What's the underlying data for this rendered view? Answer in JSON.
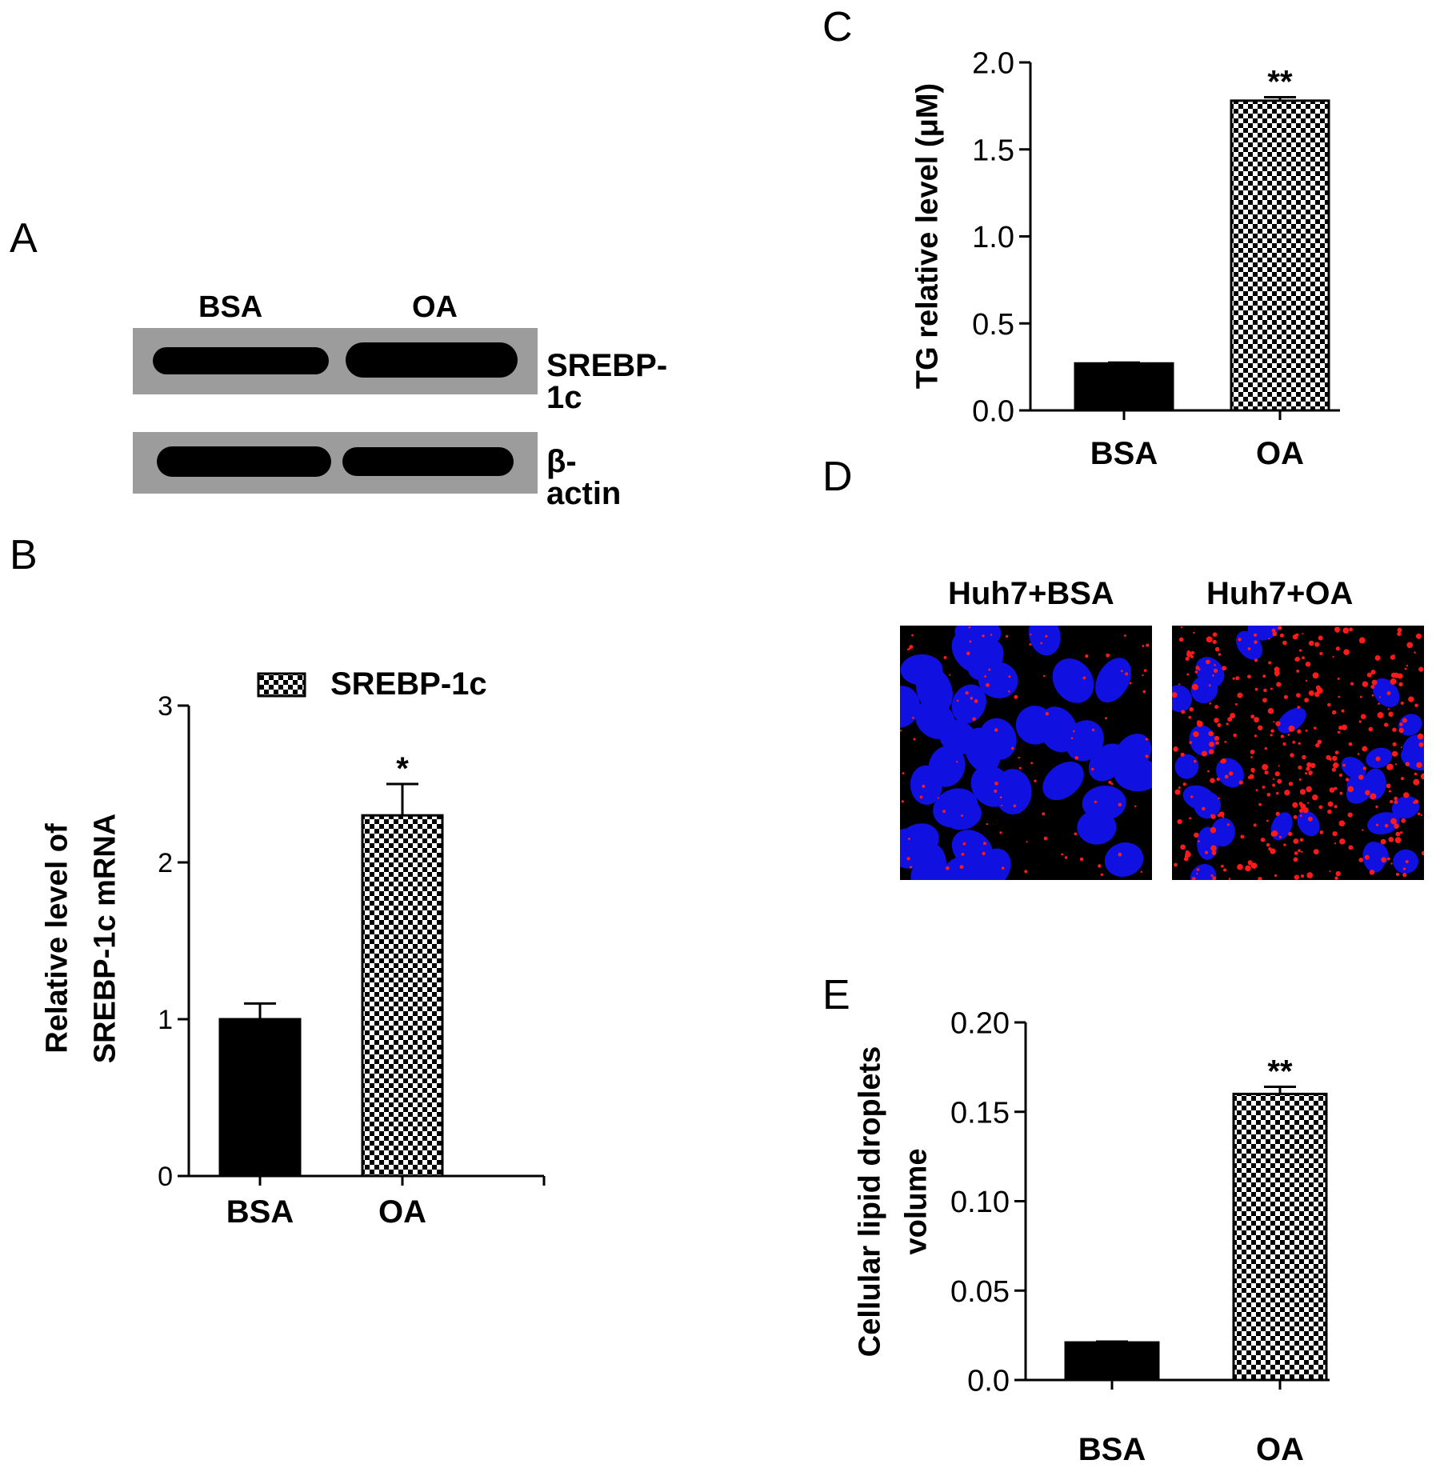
{
  "colors": {
    "solid_bar": "#000000",
    "check_dark": "#000000",
    "check_light": "#ffffff",
    "blot_bg": "#9c9c9c",
    "nucleus": "#1010e0",
    "lipid": "#ff1a1a"
  },
  "panels": {
    "A": {
      "letter": "A",
      "lanes": [
        "BSA",
        "OA"
      ],
      "rows": [
        {
          "label": "SREBP-1c",
          "band_intensity": [
            0.8,
            1.0
          ]
        },
        {
          "label": "β-actin",
          "band_intensity": [
            1.0,
            0.95
          ]
        }
      ]
    },
    "B": {
      "letter": "B"
    },
    "C": {
      "letter": "C"
    },
    "D": {
      "letter": "D",
      "images": [
        {
          "label": "Huh7+BSA",
          "lipid_level": 0.15
        },
        {
          "label": "Huh7+OA",
          "lipid_level": 0.85
        }
      ]
    },
    "E": {
      "letter": "E"
    }
  },
  "chart_data": [
    {
      "panel": "B",
      "type": "bar",
      "categories": [
        "BSA",
        "OA"
      ],
      "values": [
        1.0,
        2.3
      ],
      "errors": [
        0.1,
        0.2
      ],
      "significance": [
        "",
        "*"
      ],
      "fills": [
        "solid",
        "checker"
      ],
      "ylabel": [
        "Relative level of",
        "SREBP-1c mRNA"
      ],
      "ylim": [
        0,
        3
      ],
      "yticks": [
        "0",
        "1",
        "2",
        "3"
      ],
      "legend": {
        "label": "SREBP-1c",
        "placement": "top"
      },
      "grid": false
    },
    {
      "panel": "C",
      "type": "bar",
      "categories": [
        "BSA",
        "OA"
      ],
      "values": [
        0.27,
        1.78
      ],
      "errors": [
        0.005,
        0.02
      ],
      "significance": [
        "",
        "**"
      ],
      "fills": [
        "solid",
        "checker"
      ],
      "ylabel": [
        "TG relative level (μM)"
      ],
      "ylim": [
        0,
        2.0
      ],
      "yticks": [
        "0.0",
        "0.5",
        "1.0",
        "1.5",
        "2.0"
      ],
      "grid": false
    },
    {
      "panel": "E",
      "type": "bar",
      "categories": [
        "BSA",
        "OA"
      ],
      "values": [
        0.021,
        0.16
      ],
      "errors": [
        0.0005,
        0.004
      ],
      "significance": [
        "",
        "**"
      ],
      "fills": [
        "solid",
        "checker"
      ],
      "ylabel": [
        "Cellular lipid droplets",
        "volume"
      ],
      "ylim": [
        0,
        0.2
      ],
      "yticks": [
        "0.0",
        "0.05",
        "0.10",
        "0.15",
        "0.20"
      ],
      "grid": false
    }
  ]
}
